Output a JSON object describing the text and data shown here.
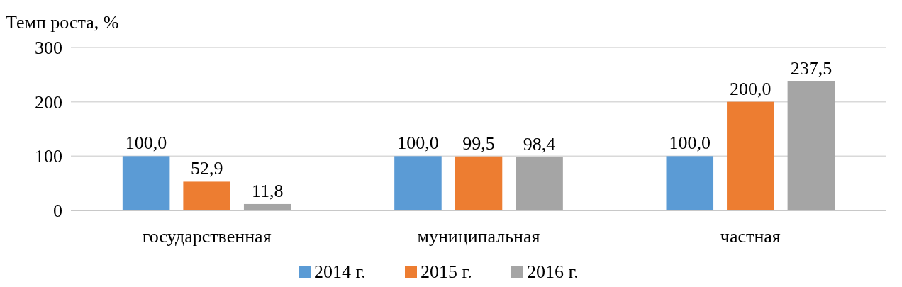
{
  "chart_data": {
    "type": "bar",
    "ylabel": "Темп роста, %",
    "categories": [
      "государственная",
      "муниципальная",
      "частная"
    ],
    "series": [
      {
        "name": "2014 г.",
        "color": "#5b9bd5",
        "values": [
          100,
          100,
          100
        ],
        "value_labels": [
          "100,0",
          "100,0",
          "100,0"
        ]
      },
      {
        "name": "2015 г.",
        "color": "#ed7d31",
        "values": [
          52.9,
          99.5,
          200
        ],
        "value_labels": [
          "52,9",
          "99,5",
          "200,0"
        ]
      },
      {
        "name": "2016 г.",
        "color": "#a5a5a5",
        "values": [
          11.8,
          98.4,
          237.5
        ],
        "value_labels": [
          "11,8",
          "98,4",
          "237,5"
        ]
      }
    ],
    "ylim": [
      0,
      300
    ],
    "yticks": [
      0,
      100,
      200,
      300
    ],
    "grid": "y",
    "legend": "bottom"
  }
}
